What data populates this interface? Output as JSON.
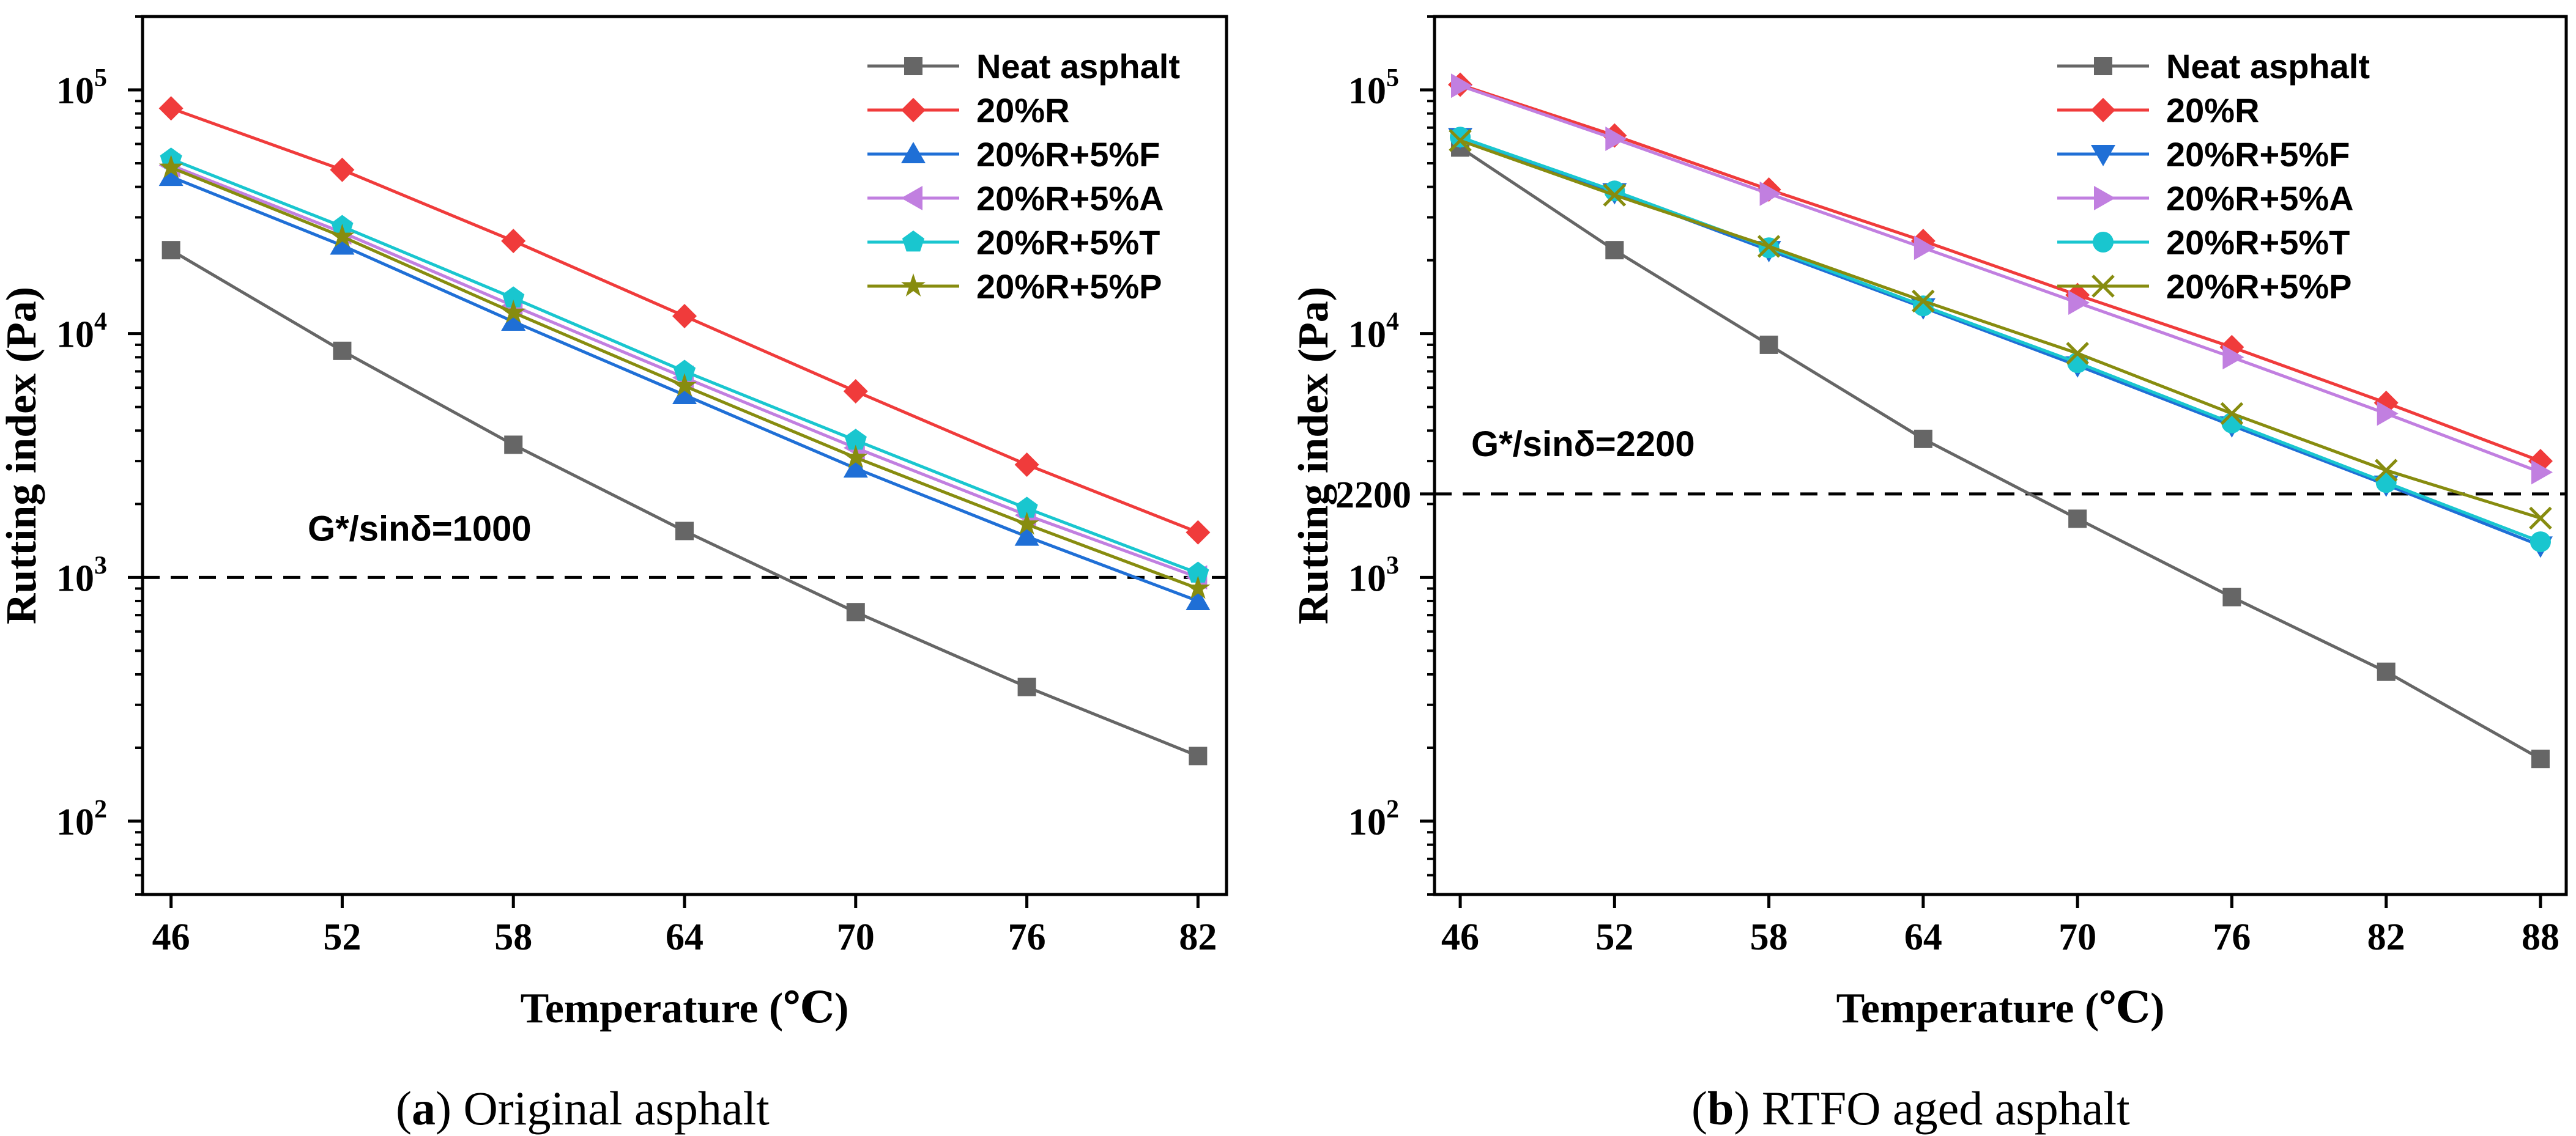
{
  "chart_data": [
    {
      "type": "line",
      "caption_letter": "a",
      "caption_text": "Original asphalt",
      "xlabel": "Temperature (℃)",
      "ylabel": "Rutting index (Pa)",
      "yscale": "log",
      "ylim": [
        50,
        200000
      ],
      "xlim": [
        45,
        83
      ],
      "x": [
        46,
        52,
        58,
        64,
        70,
        76,
        82
      ],
      "x_ticks": [
        "46",
        "52",
        "58",
        "64",
        "70",
        "76",
        "82"
      ],
      "y_ticks": [
        {
          "value": 100,
          "base": "10",
          "exp": "2"
        },
        {
          "value": 1000,
          "base": "10",
          "exp": "3"
        },
        {
          "value": 10000,
          "base": "10",
          "exp": "4"
        },
        {
          "value": 100000,
          "base": "10",
          "exp": "5"
        }
      ],
      "reference": {
        "value": 1000,
        "label": "G*/sinδ=1000"
      },
      "legend_position": "top-right",
      "series": [
        {
          "name": "Neat asphalt",
          "color": "#666666",
          "marker": "square",
          "values": [
            22000,
            8500,
            3500,
            1550,
            720,
            355,
            185
          ]
        },
        {
          "name": "20%R",
          "color": "#f03b3b",
          "marker": "diamond",
          "values": [
            84000,
            47000,
            24000,
            11800,
            5800,
            2900,
            1530
          ]
        },
        {
          "name": "20%R+5%F",
          "color": "#1f6fd6",
          "marker": "triangle-up",
          "values": [
            44000,
            23000,
            11200,
            5600,
            2800,
            1470,
            800
          ]
        },
        {
          "name": "20%R+5%A",
          "color": "#c17fe0",
          "marker": "triangle-left",
          "values": [
            49000,
            26000,
            13000,
            6600,
            3400,
            1800,
            1000
          ]
        },
        {
          "name": "20%R+5%T",
          "color": "#19c6cf",
          "marker": "pentagon",
          "values": [
            52000,
            27500,
            14000,
            7000,
            3650,
            1920,
            1040
          ]
        },
        {
          "name": "20%R+5%P",
          "color": "#878c0f",
          "marker": "star",
          "values": [
            48000,
            25000,
            12200,
            6100,
            3100,
            1650,
            900
          ]
        }
      ]
    },
    {
      "type": "line",
      "caption_letter": "b",
      "caption_text": "RTFO aged asphalt",
      "xlabel": "Temperature (℃)",
      "ylabel": "Rutting index (Pa)",
      "yscale": "log",
      "ylim": [
        50,
        200000
      ],
      "xlim": [
        45,
        89
      ],
      "x": [
        46,
        52,
        58,
        64,
        70,
        76,
        82,
        88
      ],
      "x_ticks": [
        "46",
        "52",
        "58",
        "64",
        "70",
        "76",
        "82",
        "88"
      ],
      "y_ticks": [
        {
          "value": 100,
          "base": "10",
          "exp": "2"
        },
        {
          "value": 1000,
          "base": "10",
          "exp": "3"
        },
        {
          "value": 2200,
          "base": "2200",
          "exp": ""
        },
        {
          "value": 10000,
          "base": "10",
          "exp": "4"
        },
        {
          "value": 100000,
          "base": "10",
          "exp": "5"
        }
      ],
      "reference": {
        "value": 2200,
        "label": "G*/sinδ=2200"
      },
      "legend_position": "top-right",
      "series": [
        {
          "name": "Neat asphalt",
          "color": "#666666",
          "marker": "square",
          "values": [
            58000,
            22000,
            9000,
            3700,
            1740,
            830,
            410,
            180
          ]
        },
        {
          "name": "20%R",
          "color": "#f03b3b",
          "marker": "diamond",
          "values": [
            105000,
            65000,
            39000,
            24000,
            14400,
            8800,
            5200,
            3000
          ]
        },
        {
          "name": "20%R+5%F",
          "color": "#1f6fd6",
          "marker": "triangle-down",
          "values": [
            64000,
            38000,
            22000,
            12800,
            7400,
            4200,
            2400,
            1350
          ]
        },
        {
          "name": "20%R+5%A",
          "color": "#c17fe0",
          "marker": "triangle-right",
          "values": [
            104000,
            63000,
            37500,
            22500,
            13400,
            8000,
            4700,
            2700
          ]
        },
        {
          "name": "20%R+5%T",
          "color": "#19c6cf",
          "marker": "circle",
          "values": [
            64000,
            38500,
            22500,
            13000,
            7600,
            4300,
            2450,
            1400
          ]
        },
        {
          "name": "20%R+5%P",
          "color": "#878c0f",
          "marker": "x",
          "values": [
            62000,
            37000,
            22800,
            13600,
            8300,
            4700,
            2750,
            1750
          ]
        }
      ]
    }
  ]
}
